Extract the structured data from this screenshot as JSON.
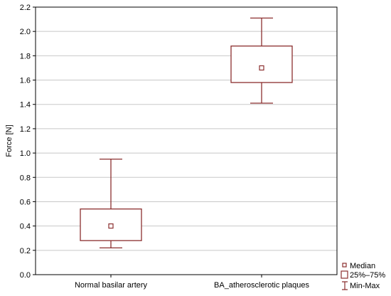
{
  "chart_data": {
    "type": "box",
    "title": "",
    "xlabel": "",
    "ylabel": "Force [N]",
    "ylim": [
      0.0,
      2.2
    ],
    "yticks": [
      "0.0",
      "0.2",
      "0.4",
      "0.6",
      "0.8",
      "1.0",
      "1.2",
      "1.4",
      "1.6",
      "1.8",
      "2.0",
      "2.2"
    ],
    "grid": true,
    "legend_position": "bottom-right",
    "categories": [
      "Normal basilar artery",
      "BA_atherosclerotic plaques"
    ],
    "series": [
      {
        "category": "Normal basilar artery",
        "min": 0.22,
        "q1": 0.28,
        "median": 0.4,
        "q3": 0.54,
        "max": 0.95
      },
      {
        "category": "BA_atherosclerotic plaques",
        "min": 1.41,
        "q1": 1.58,
        "median": 1.7,
        "q3": 1.88,
        "max": 2.11
      }
    ],
    "legend": {
      "median": "Median",
      "box": "25%–75%",
      "whisker": "Min-Max"
    },
    "colors": {
      "box_stroke": "#8b2f2f",
      "grid": "#c8c8c8",
      "axis": "#000000"
    }
  }
}
